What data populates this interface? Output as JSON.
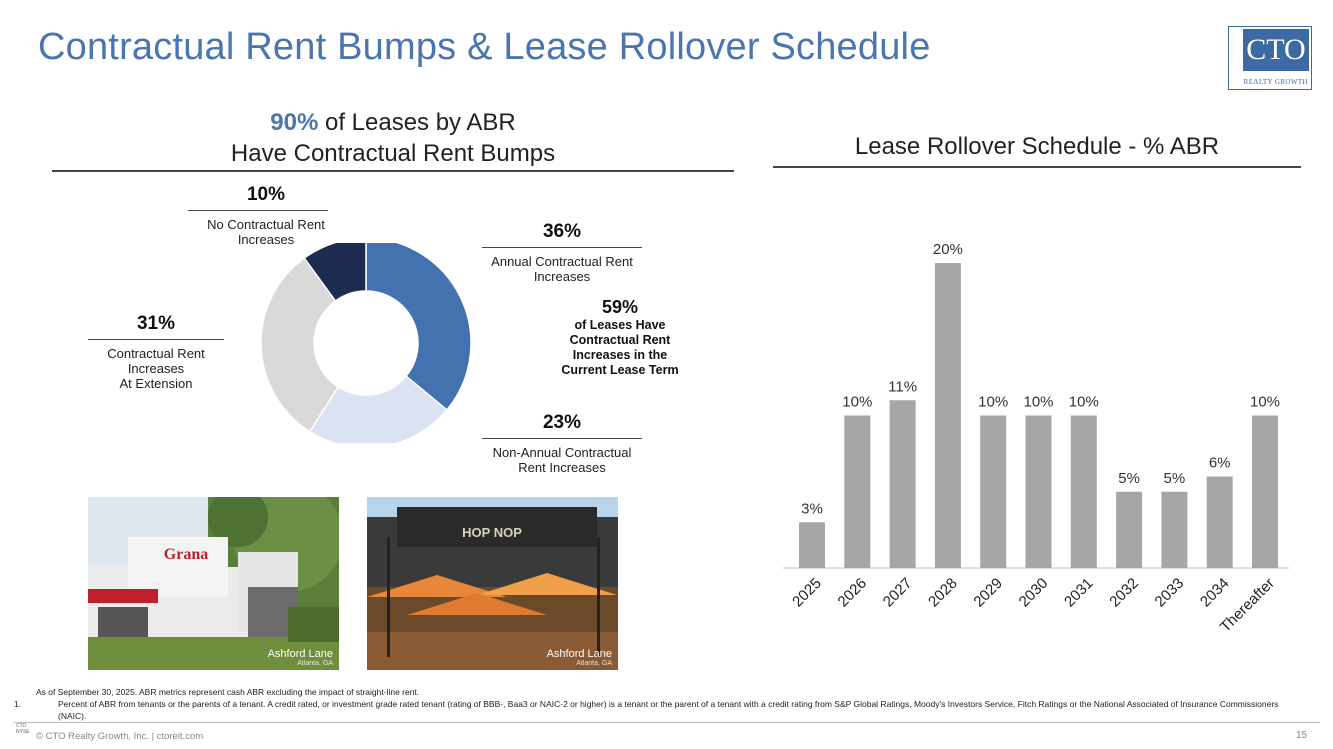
{
  "title": "Contractual Rent Bumps & Lease Rollover Schedule",
  "logo": {
    "text": "CTO",
    "subtext": "REALTY GROWTH"
  },
  "left_panel": {
    "heading_pct": "90%",
    "heading_rest": " of Leases by ABR",
    "heading_line2": "Have Contractual Rent Bumps",
    "callouts": {
      "no_bumps": {
        "value": "10%",
        "label_l1": "No Contractual Rent",
        "label_l2": "Increases"
      },
      "annual": {
        "value": "36%",
        "label_l1": "Annual Contractual Rent",
        "label_l2": "Increases"
      },
      "extension": {
        "value": "31%",
        "label_l1": "Contractual Rent",
        "label_l2": "Increases",
        "label_l3": "At Extension"
      },
      "non_annual": {
        "value": "23%",
        "label_l1": "Non-Annual Contractual",
        "label_l2": "Rent Increases"
      },
      "current_term": {
        "value": "59%",
        "label_l1": "of Leases Have",
        "label_l2": "Contractual Rent",
        "label_l3": "Increases in the",
        "label_l4": "Current Lease Term"
      }
    },
    "photos": [
      {
        "caption": "Ashford Lane",
        "sub": "Atlanta, GA",
        "sign": "Grana"
      },
      {
        "caption": "Ashford Lane",
        "sub": "Atlanta, GA",
        "sign": "HOP NOP"
      }
    ]
  },
  "chart_data": [
    {
      "type": "pie",
      "title": "90% of Leases by ABR Have Contractual Rent Bumps",
      "donut": true,
      "categories": [
        "Annual Contractual Rent Increases",
        "Non-Annual Contractual Rent Increases",
        "Contractual Rent Increases At Extension",
        "No Contractual Rent Increases"
      ],
      "values": [
        36,
        23,
        31,
        10
      ],
      "colors": [
        "#4472b0",
        "#dbe3f3",
        "#d9d9d9",
        "#1c2b4f"
      ]
    },
    {
      "type": "bar",
      "title": "Lease Rollover Schedule - % ABR",
      "categories": [
        "2025",
        "2026",
        "2027",
        "2028",
        "2029",
        "2030",
        "2031",
        "2032",
        "2033",
        "2034",
        "Thereafter"
      ],
      "values": [
        3,
        10,
        11,
        20,
        10,
        10,
        10,
        5,
        5,
        6,
        10
      ],
      "labels": [
        "3%",
        "10%",
        "11%",
        "20%",
        "10%",
        "10%",
        "10%",
        "5%",
        "5%",
        "6%",
        "10%"
      ],
      "ylim": [
        0,
        20
      ],
      "color": "#a6a6a6"
    }
  ],
  "footnotes": {
    "intro": "As of September 30, 2025. ABR metrics represent cash ABR excluding the impact of straight-line rent.",
    "n1_num": "1.",
    "n1": "Percent of ABR from tenants or the parents of a tenant. A credit rated, or investment grade rated tenant (rating of BBB-, Baa3 or NAIC-2 or higher) is a tenant or the parent of a tenant with a credit rating from S&P Global Ratings, Moody's Investors Service, Fitch Ratings or the National Associated of Insurance Commissioners (NAIC)."
  },
  "footer": {
    "copyright": "© CTO Realty Growth, Inc. | ctoreit.com",
    "page": "15",
    "ticker_top": "CTO",
    "ticker_bottom": "NYSE"
  }
}
